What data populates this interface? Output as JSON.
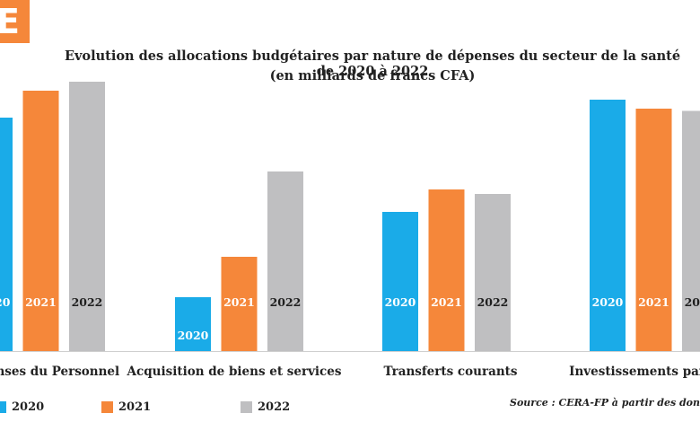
{
  "badge": {
    "letter": "E",
    "color": "#f5873a"
  },
  "chart_data": {
    "type": "bar",
    "title": "Evolution des allocations budgétaires par nature de dépenses du secteur de la santé de 2020 à 2022",
    "subtitle": "(en milliards de francs CFA)",
    "categories": [
      "Dépenses du Personnel",
      "Acquisition de biens et services",
      "Transferts courants",
      "Investissements par l'État"
    ],
    "visible_category_labels": [
      "enses du Personnel",
      "Acquisition de biens et services",
      "Transferts courants",
      "Investissements par l"
    ],
    "series": [
      {
        "name": "2020",
        "color": "#1aabe8",
        "values": [
          52,
          12,
          31,
          56
        ]
      },
      {
        "name": "2021",
        "color": "#f5873a",
        "values": [
          58,
          21,
          36,
          54
        ]
      },
      {
        "name": "2022",
        "color": "#bfbfc1",
        "values": [
          60,
          40,
          35,
          53.5
        ]
      }
    ],
    "ylim": [
      0,
      60
    ],
    "grid": false,
    "legend": "bottom-left",
    "source": "Source : CERA-FP à partir des don"
  }
}
